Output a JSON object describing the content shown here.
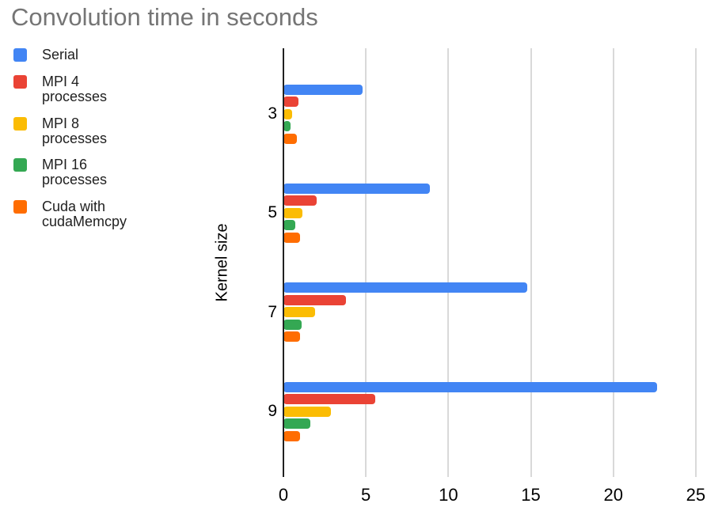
{
  "page": {
    "background": "#ffffff"
  },
  "chart_data": {
    "type": "bar",
    "orientation": "horizontal",
    "title": "Convolution time in seconds",
    "xlabel": "",
    "ylabel": "Kernel size",
    "categories": [
      "3",
      "5",
      "7",
      "9"
    ],
    "series": [
      {
        "name": "Serial",
        "color": "#4285f4",
        "values": [
          4.8,
          8.9,
          14.8,
          22.65
        ]
      },
      {
        "name": "MPI 4 processes",
        "color": "#ea4335",
        "values": [
          0.9,
          2.0,
          3.8,
          5.55
        ]
      },
      {
        "name": "MPI 8 processes",
        "color": "#fbbc04",
        "values": [
          0.55,
          1.15,
          1.9,
          2.9
        ]
      },
      {
        "name": "MPI 16 processes",
        "color": "#34a853",
        "values": [
          0.45,
          0.7,
          1.1,
          1.65
        ]
      },
      {
        "name": "Cuda with cudaMemcpy",
        "color": "#ff6d01",
        "values": [
          0.8,
          1.0,
          1.0,
          1.0
        ]
      }
    ],
    "x_ticks": [
      0,
      5,
      10,
      15,
      20,
      25
    ],
    "xlim": [
      0,
      25
    ],
    "grid": true,
    "legend_position": "top-left",
    "colors": {
      "title": "#757575",
      "axis_line": "#212121",
      "gridline": "#d9d9d9",
      "tick_text": "#000000",
      "legend_text": "#212121"
    }
  }
}
